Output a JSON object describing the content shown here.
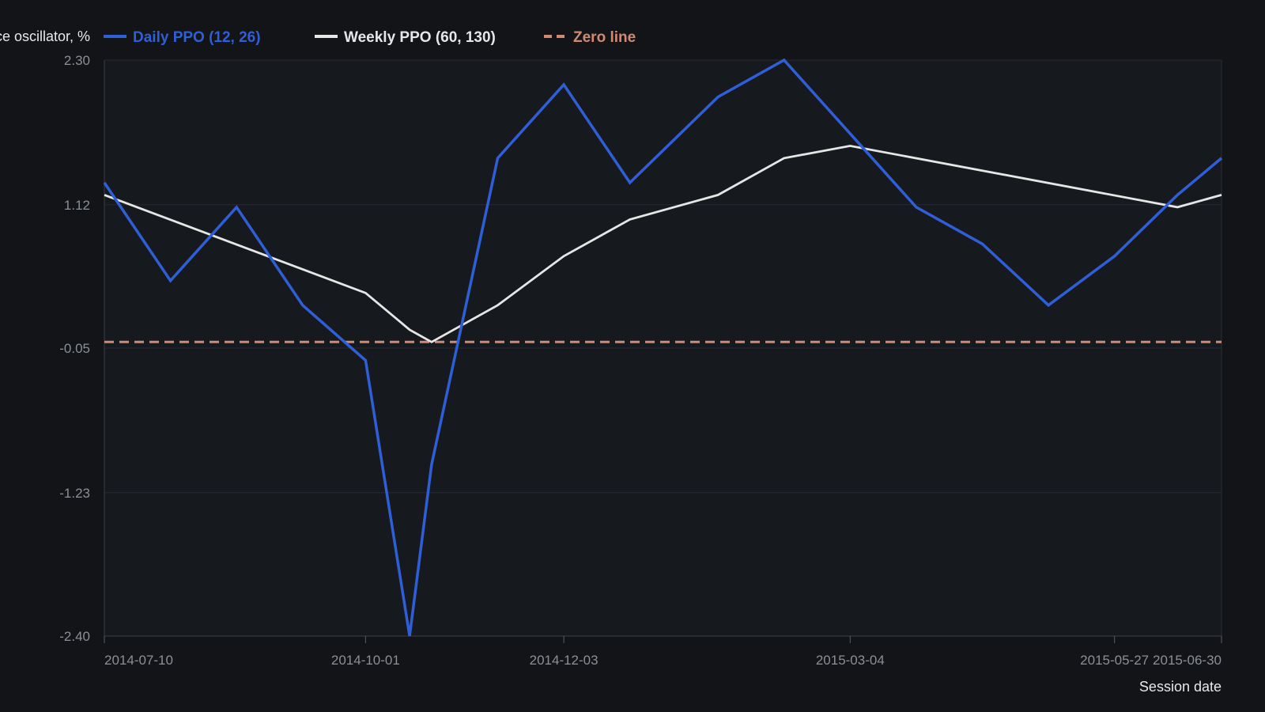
{
  "chart_data": {
    "type": "line",
    "ylabel": "Percentage price oscillator, %",
    "xlabel": "Session date",
    "yticks": [
      "2.30",
      "1.12",
      "-0.05",
      "-1.23",
      "-2.40"
    ],
    "ylim": [
      -2.4,
      2.3
    ],
    "xticks": [
      "2014-07-10",
      "2014-10-01",
      "2014-12-03",
      "2015-03-04",
      "2015-05-27",
      "2015-06-30"
    ],
    "xlim": [
      "2014-07-10",
      "2015-06-30"
    ],
    "grid": true,
    "legend_position": "top",
    "series": [
      {
        "name": "Daily PPO (12, 26)",
        "color": "#2f5fd6",
        "style": "solid",
        "points": [
          [
            "2014-07-10",
            1.3
          ],
          [
            "2014-07-31",
            0.5
          ],
          [
            "2014-08-21",
            1.1
          ],
          [
            "2014-09-11",
            0.3
          ],
          [
            "2014-10-01",
            -0.15
          ],
          [
            "2014-10-15",
            -2.4
          ],
          [
            "2014-10-22",
            -1.0
          ],
          [
            "2014-11-12",
            1.5
          ],
          [
            "2014-12-03",
            2.1
          ],
          [
            "2014-12-24",
            1.3
          ],
          [
            "2015-01-21",
            2.0
          ],
          [
            "2015-02-11",
            2.3
          ],
          [
            "2015-03-04",
            1.7
          ],
          [
            "2015-03-25",
            1.1
          ],
          [
            "2015-04-15",
            0.8
          ],
          [
            "2015-05-06",
            0.3
          ],
          [
            "2015-05-27",
            0.7
          ],
          [
            "2015-06-16",
            1.2
          ],
          [
            "2015-06-30",
            1.5
          ]
        ]
      },
      {
        "name": "Weekly PPO (60, 130)",
        "color": "#e6e6e6",
        "style": "solid",
        "points": [
          [
            "2014-07-10",
            1.2
          ],
          [
            "2014-10-01",
            0.4
          ],
          [
            "2014-10-15",
            0.1
          ],
          [
            "2014-10-22",
            0.0
          ],
          [
            "2014-11-12",
            0.3
          ],
          [
            "2014-12-03",
            0.7
          ],
          [
            "2014-12-24",
            1.0
          ],
          [
            "2015-01-21",
            1.2
          ],
          [
            "2015-02-11",
            1.5
          ],
          [
            "2015-03-04",
            1.6
          ],
          [
            "2015-06-16",
            1.1
          ],
          [
            "2015-06-30",
            1.2
          ]
        ]
      },
      {
        "name": "Zero line",
        "color": "#d18a72",
        "style": "dashed",
        "points": [
          [
            "2014-07-10",
            0.0
          ],
          [
            "2015-06-30",
            0.0
          ]
        ]
      }
    ]
  }
}
